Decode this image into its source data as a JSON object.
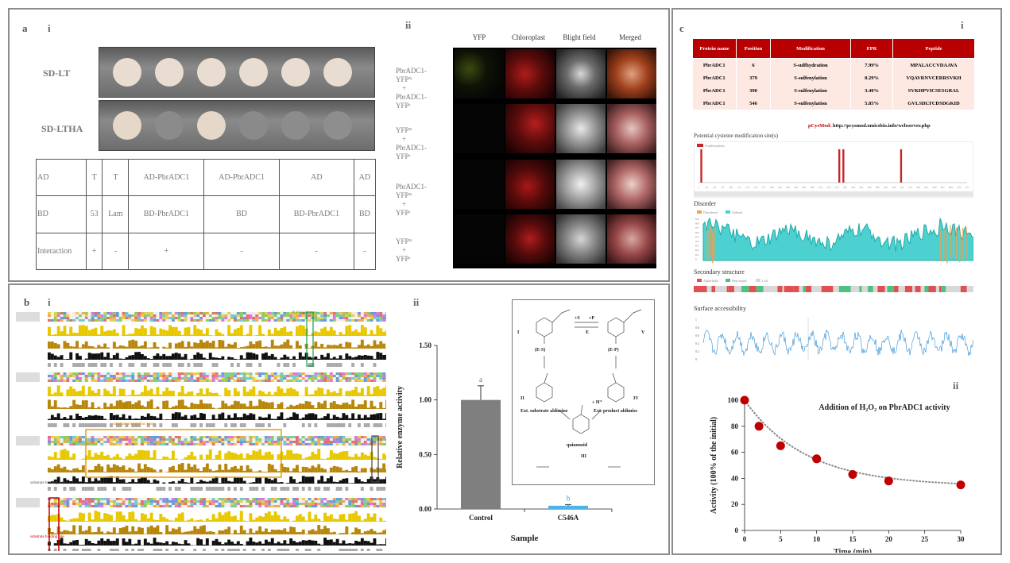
{
  "panel_a": {
    "letter": "a",
    "sub_i": "i",
    "sub_ii": "ii",
    "plate_labels": [
      "SD-LT",
      "SD-LTHA"
    ],
    "table": {
      "row_headers": [
        "AD",
        "BD",
        "Interaction"
      ],
      "ad": [
        "T",
        "T",
        "AD-PbrADC1",
        "AD-PbrADC1",
        "AD",
        "AD"
      ],
      "bd": [
        "53",
        "Lam",
        "BD-PbrADC1",
        "BD",
        "BD-PbrADC1",
        "BD"
      ],
      "interaction": [
        "+",
        "-",
        "+",
        "-",
        "-",
        "-"
      ]
    },
    "micro_headers": [
      "YFP",
      "Chloroplast",
      "Blight field",
      "Merged"
    ],
    "micro_rows": [
      [
        "PbrADC1-",
        "YFPᴺ",
        "+",
        "PbrADC1-",
        "YFPᶜ"
      ],
      [
        "YFPᴺ",
        "+",
        "PbrADC1-",
        "YFPᶜ"
      ],
      [
        "PbrADC1-",
        "YFPᴺ",
        "+",
        "YFPᶜ"
      ],
      [
        "YFPᴺ",
        "+",
        "YFPᶜ"
      ]
    ]
  },
  "panel_b": {
    "letter": "b",
    "sub_i": "i",
    "sub_ii": "ii",
    "align_labels": [
      "PLP binding site",
      "substrate recognition loop",
      "substrate binding loop",
      "substrate binding site"
    ]
  },
  "panel_c": {
    "letter": "c",
    "sub_i": "i",
    "sub_ii": "ii",
    "table_headers": [
      "Protein name",
      "Position",
      "Modification",
      "FPR",
      "Peptide"
    ],
    "table_rows": [
      [
        "PbrADC1",
        "6",
        "S-sulfhydration",
        "7.99%",
        "MPALACCVDAAVA"
      ],
      [
        "PbrADC1",
        "379",
        "S-sulfenylation",
        "0.29%",
        "VQAVRNVCERRSVKH"
      ],
      [
        "PbrADC1",
        "390",
        "S-sulfenylation",
        "3.40%",
        "SVKHPVICSESGRAL"
      ],
      [
        "PbrADC1",
        "546",
        "S-sulfenylation",
        "5.85%",
        "GVLSDLTCDSDGKID"
      ]
    ],
    "pcysmod_label": "pCysMod:",
    "pcysmod_url": "http://pcysmod.omicsbio.info/webserver.php",
    "tracks": {
      "site_title": "Potential cysteine modification site(s)",
      "site_legend": "S-sulfenylation",
      "disorder_title": "Disorder",
      "disorder_legend": [
        "Disordered",
        "Ordered"
      ],
      "ss_title": "Secondary structure",
      "ss_legend": [
        "Alpha-helix",
        "Beta-strand",
        "Coil"
      ],
      "sa_title": "Surface accessibility"
    },
    "site_ticks": [
      "1",
      "23",
      "45",
      "67",
      "89",
      "111",
      "133",
      "155",
      "177",
      "199",
      "221",
      "243",
      "265",
      "287",
      "309",
      "331",
      "353",
      "375",
      "397",
      "419",
      "441",
      "463",
      "485",
      "507",
      "529",
      "551",
      "573",
      "595",
      "617",
      "639",
      "661",
      "683",
      "705",
      "727"
    ]
  },
  "chart_data": [
    {
      "type": "bar",
      "title": "",
      "xlabel": "Sample",
      "ylabel": "Relative enzyme activity",
      "categories": [
        "Control",
        "C546A"
      ],
      "values": [
        1.0,
        0.03
      ],
      "errors": [
        0.13,
        0.01
      ],
      "significance": [
        "a",
        "b"
      ],
      "colors": [
        "#7f7f7f",
        "#4fb3e6"
      ],
      "ylim": [
        0,
        1.5
      ],
      "yticks": [
        "0.00",
        "0.50",
        "1.00",
        "1.50"
      ],
      "inset_labels": [
        "I",
        "II",
        "III",
        "IV",
        "V",
        "(E·S)",
        "(E·P)",
        "Ext. substrate aldimine",
        "Ext. product aldimise",
        "quinonoid",
        "+S",
        "+P",
        "E",
        "+ H⁺"
      ]
    },
    {
      "type": "scatter",
      "title": "Addition of H₂O₂ on PbrADC1 activity",
      "xlabel": "Time (min)",
      "ylabel": "Activity (100% of the initial)",
      "x": [
        0,
        2,
        5,
        10,
        15,
        20,
        30
      ],
      "y": [
        100,
        80,
        65,
        55,
        43,
        38,
        35
      ],
      "xlim": [
        0,
        30
      ],
      "ylim": [
        0,
        100
      ],
      "xticks": [
        "0",
        "5",
        "10",
        "15",
        "20",
        "25",
        "30"
      ],
      "yticks": [
        "0",
        "20",
        "40",
        "60",
        "80",
        "100"
      ],
      "trendline": "dotted",
      "marker_color": "#c00000"
    }
  ]
}
